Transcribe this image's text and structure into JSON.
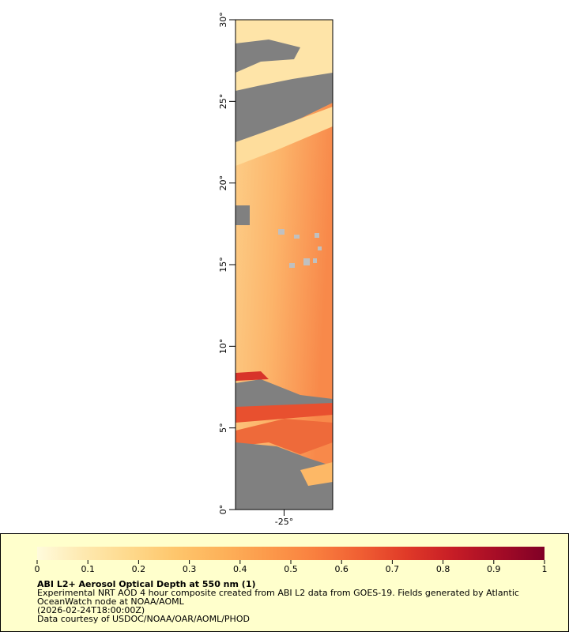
{
  "map": {
    "ylim": [
      0,
      30
    ],
    "xlim": [
      -28,
      -22
    ],
    "yticks": [
      {
        "value": 0,
        "label": "0°"
      },
      {
        "value": 5,
        "label": "5°"
      },
      {
        "value": 10,
        "label": "10°"
      },
      {
        "value": 15,
        "label": "15°"
      },
      {
        "value": 20,
        "label": "20°"
      },
      {
        "value": 25,
        "label": "25°"
      },
      {
        "value": 30,
        "label": "30°"
      }
    ],
    "xticks": [
      {
        "value": -25,
        "label": "-25°"
      }
    ]
  },
  "colorbar": {
    "lim": [
      0,
      1
    ],
    "ticks": [
      0,
      0.1,
      0.2,
      0.3,
      0.4,
      0.5,
      0.6,
      0.7,
      0.8,
      0.9,
      1
    ],
    "colors": [
      "#fffbdc",
      "#fee9b0",
      "#fed98c",
      "#fec66c",
      "#fdb25a",
      "#fc9a4b",
      "#f9803f",
      "#f05f33",
      "#e03a28",
      "#c71d26",
      "#a50c26",
      "#800026"
    ]
  },
  "legend": {
    "title": "ABI L2+ Aerosol Optical Depth at 550 nm (1)",
    "lines": [
      "Experimental NRT AOD 4 hour composite created from ABI L2 data from GOES-19. Fields generated by Atlantic",
      "OceanWatch node at NOAA/AOML",
      "(2026-02-24T18:00:00Z)",
      "Data courtesy of USDOC/NOAA/OAR/AOML/PHOD"
    ]
  }
}
